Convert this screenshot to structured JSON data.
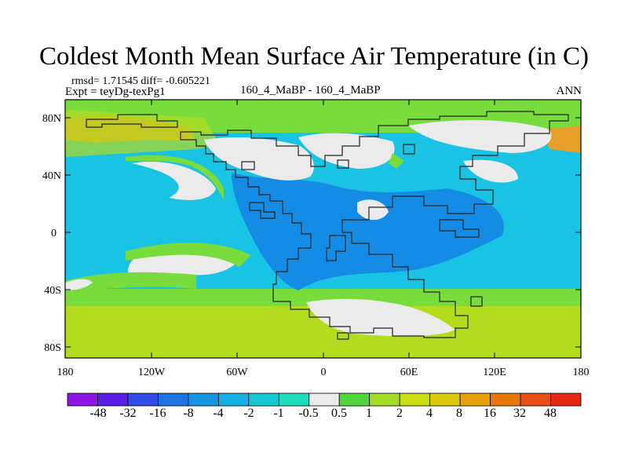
{
  "title": "Coldest Month Mean Surface Air Temperature (in C)",
  "stats": {
    "rmsd_line": "rmsd= 1.71545 diff= -0.605221",
    "expt_line": "Expt = teyDg-texPg1"
  },
  "comparison": "160_4_MaBP - 160_4_MaBP",
  "season": "ANN",
  "axes": {
    "lat_labels": [
      "80N",
      "40N",
      "0",
      "40S",
      "80S"
    ],
    "lon_labels": [
      "180",
      "120W",
      "60W",
      "0",
      "60E",
      "120E",
      "180"
    ]
  },
  "colorbar": {
    "labels": [
      "-48",
      "-32",
      "-16",
      "-8",
      "-4",
      "-2",
      "-1",
      "-0.5",
      "0.5",
      "1",
      "2",
      "4",
      "8",
      "16",
      "32",
      "48"
    ],
    "colors": [
      "#8f14e6",
      "#5b1ee6",
      "#2f4be3",
      "#1e73e0",
      "#1694e0",
      "#14b0e3",
      "#16c8d2",
      "#1edcb9",
      "#ebebeb",
      "#50d63a",
      "#a2dc28",
      "#c8dc14",
      "#dcc80a",
      "#e6a00a",
      "#e6780a",
      "#e65014",
      "#e62814"
    ]
  },
  "colors": {
    "ocean_cyan": "#19c3e3",
    "blue_region": "#148ce6",
    "green_zone": "#78dc3c",
    "yellow_green": "#b4dc1e",
    "orange": "#e6a028",
    "near_zero": "#ebebeb",
    "coastline": "#222222"
  }
}
